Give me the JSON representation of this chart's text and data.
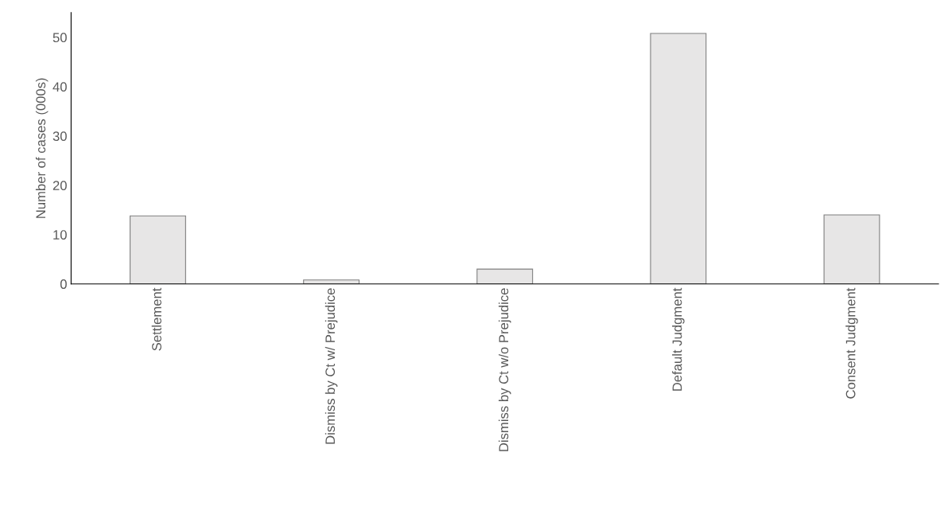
{
  "chart_data": {
    "type": "bar",
    "ylabel": "Number of cases (000s)",
    "categories": [
      "Settlement",
      "Dismiss by Ct w/ Prejudice",
      "Dismiss by Ct w/o Prejudice",
      "Default Judgment",
      "Consent Judgment"
    ],
    "values": [
      13.8,
      0.8,
      3.0,
      50.8,
      14.0
    ],
    "color": "#e7e6e6",
    "ylim": [
      0,
      55
    ],
    "yticks": [
      0,
      10,
      20,
      30,
      40,
      50
    ],
    "grid": false
  }
}
